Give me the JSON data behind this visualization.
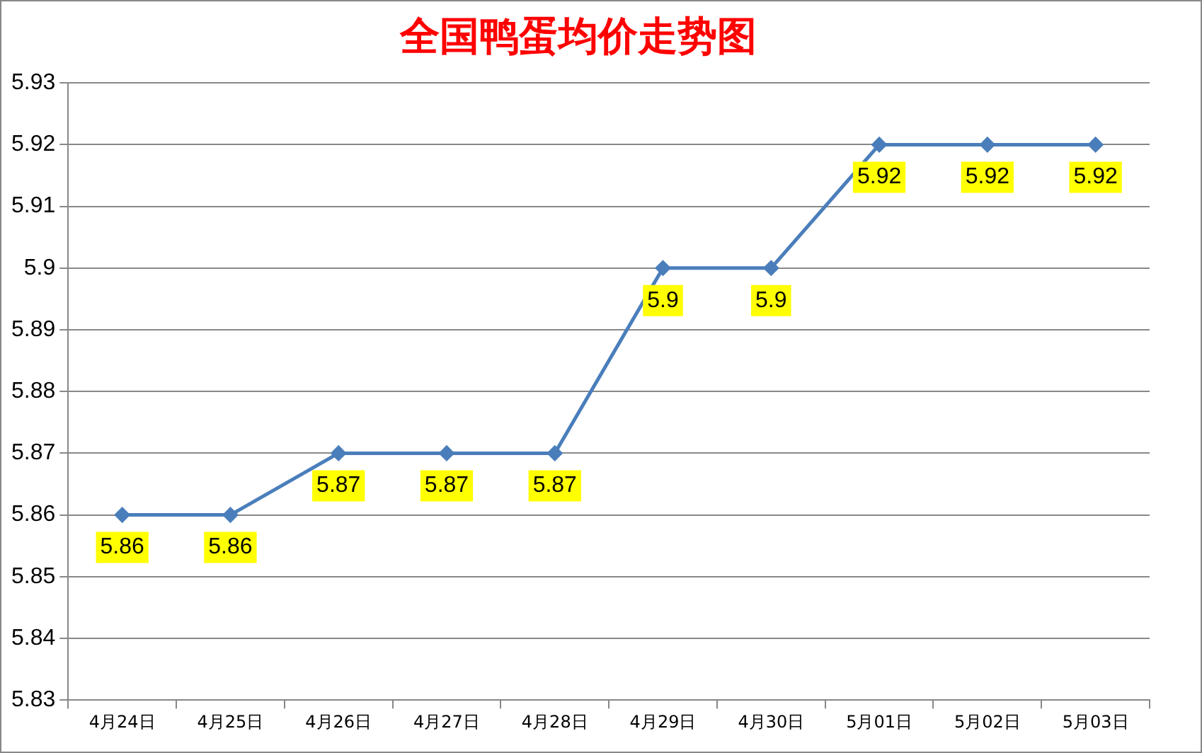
{
  "chart_data": {
    "type": "line",
    "title": "全国鸭蛋均价走势图",
    "categories": [
      "4月24日",
      "4月25日",
      "4月26日",
      "4月27日",
      "4月28日",
      "4月29日",
      "4月30日",
      "5月01日",
      "5月02日",
      "5月03日"
    ],
    "series": [
      {
        "color": "#4a7ebb",
        "values": [
          5.86,
          5.86,
          5.87,
          5.87,
          5.87,
          5.9,
          5.9,
          5.92,
          5.92,
          5.92
        ]
      }
    ],
    "ylim": [
      5.83,
      5.93
    ],
    "yticks": [
      5.83,
      5.84,
      5.85,
      5.86,
      5.87,
      5.88,
      5.89,
      5.9,
      5.91,
      5.92,
      5.93
    ],
    "grid": "y",
    "legend": false,
    "marker": "diamond",
    "line_style": "solid",
    "data_labels": true
  }
}
